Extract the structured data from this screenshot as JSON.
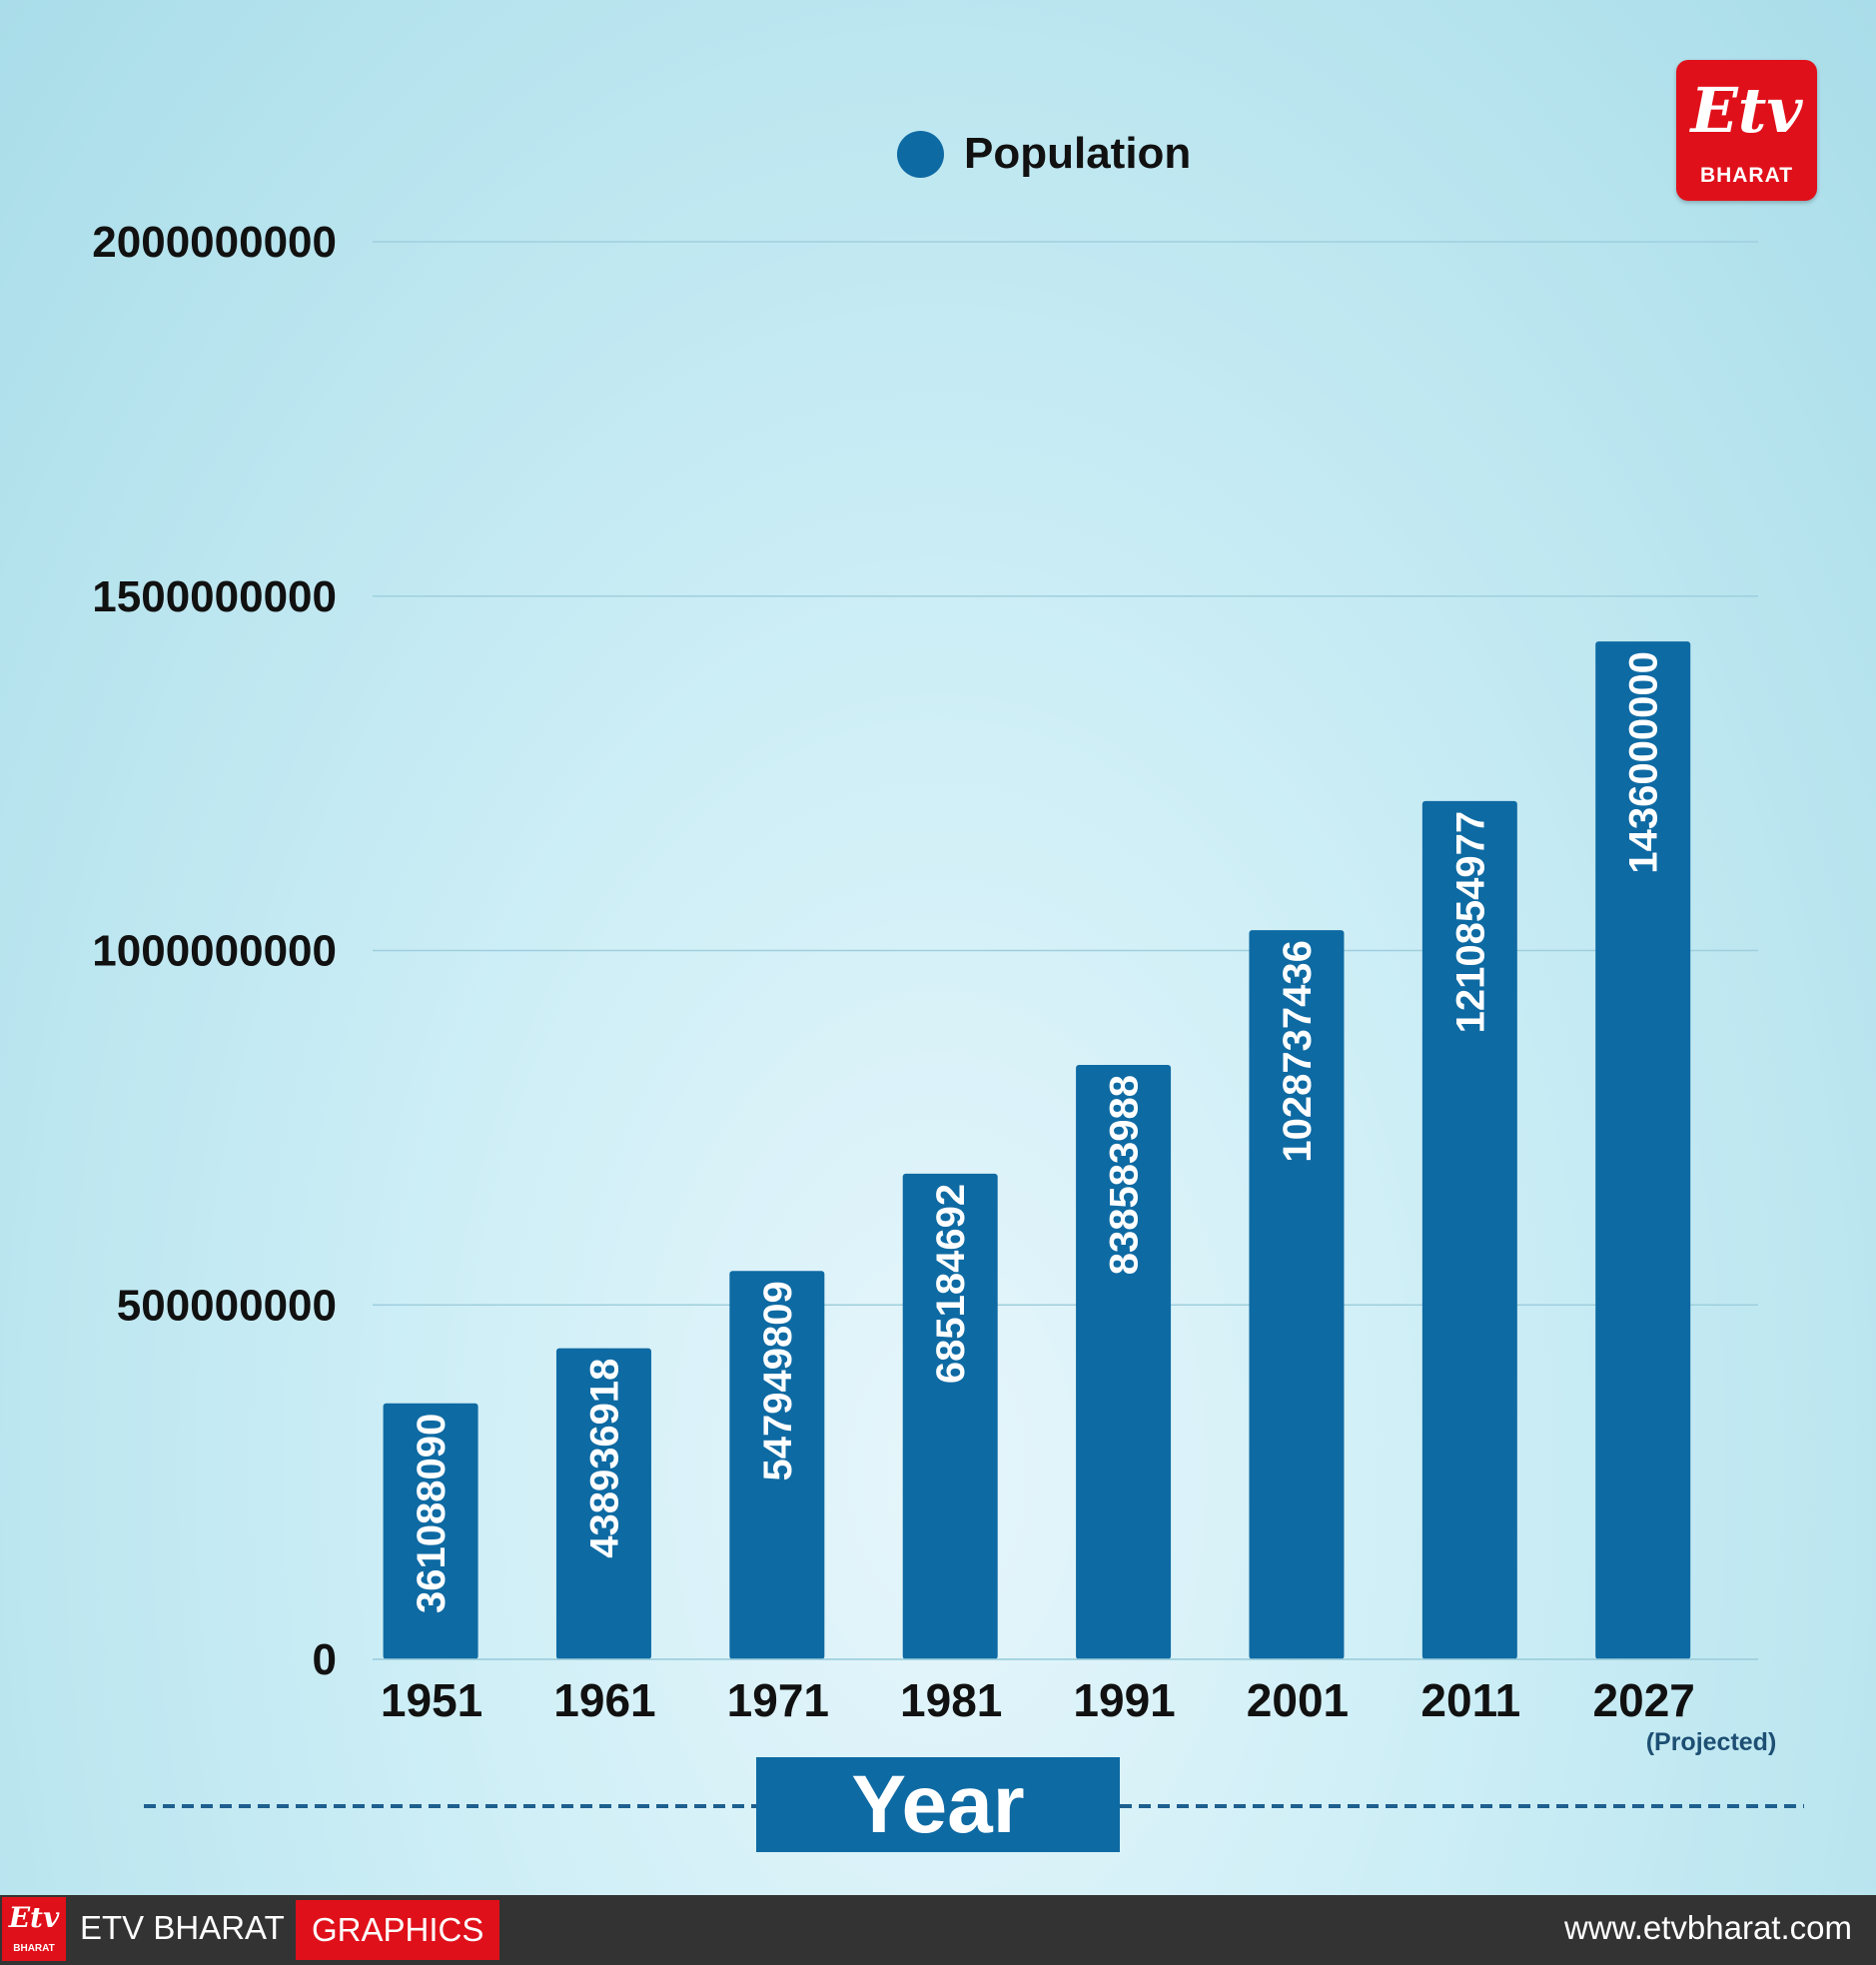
{
  "chart_data": {
    "type": "bar",
    "categories": [
      "1951",
      "1961",
      "1971",
      "1981",
      "1991",
      "2001",
      "2011",
      "2027"
    ],
    "series": [
      {
        "name": "Population",
        "values": [
          361088090,
          438936918,
          547949809,
          685184692,
          838583988,
          1028737436,
          1210854977,
          1436000000
        ]
      }
    ],
    "data_labels": [
      "361088090",
      "438936918",
      "547949809",
      "685184692",
      "838583988",
      "1028737436",
      "1210854977",
      "1436000000"
    ],
    "y_ticks": [
      "0",
      "500000000",
      "1000000000",
      "1500000000",
      "2000000000"
    ],
    "ylim": [
      0,
      2000000000
    ],
    "xlabel": "Year",
    "annotations": {
      "projected": "(Projected)"
    },
    "legend": "top-center",
    "grid": true,
    "colors": {
      "bar": "#0e6aa3",
      "grid": "#9fcfdd",
      "dashed_line": "#1d5f8e"
    }
  },
  "legend": {
    "label": "Population"
  },
  "logo": {
    "mark": "Etv",
    "brand": "BHARAT"
  },
  "footer": {
    "logo_mark": "Etv",
    "logo_brand": "BHARAT",
    "brand": "ETV BHARAT",
    "tag": "GRAPHICS",
    "url": "www.etvbharat.com"
  }
}
